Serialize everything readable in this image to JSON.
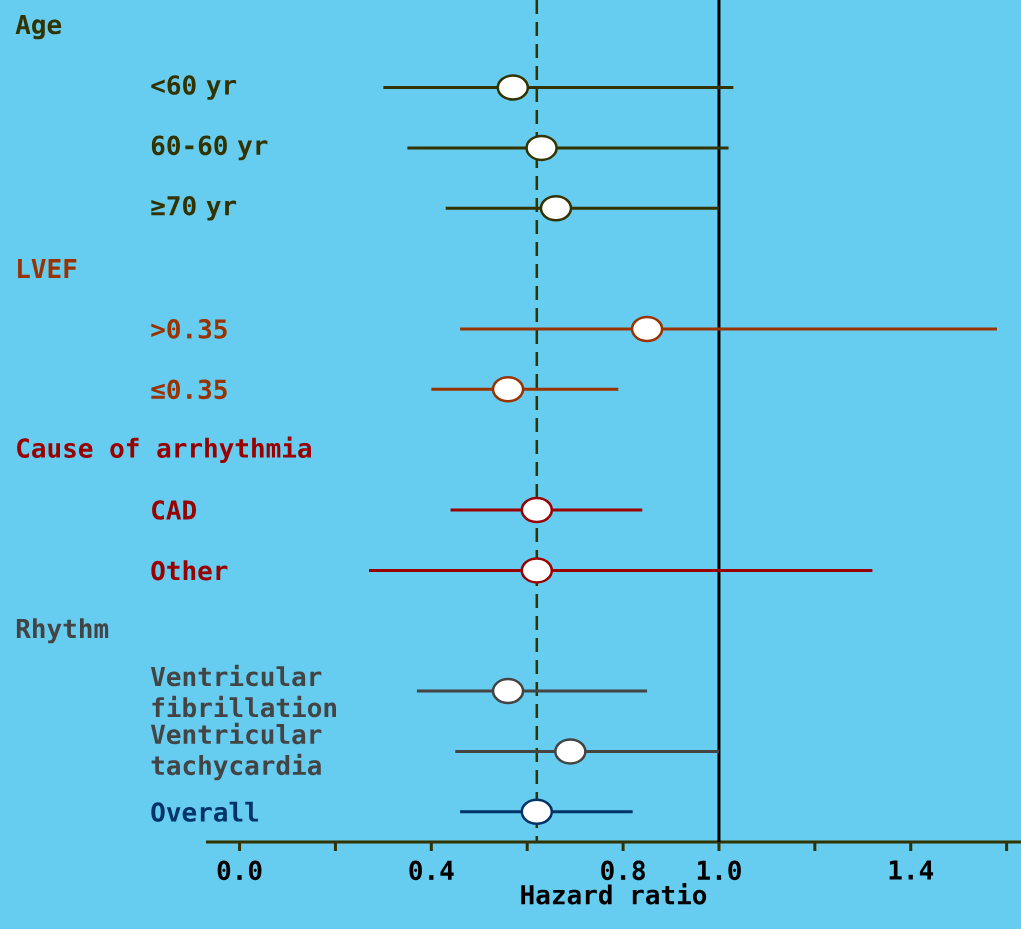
{
  "chart_data": {
    "type": "scatter",
    "orientation": "horizontal",
    "xlabel": "Hazard ratio",
    "categories": [
      null,
      "<60 yr",
      "60-60 yr",
      "≥70 yr",
      null,
      ">0.35",
      "≤0.35",
      null,
      "CAD",
      "Other",
      null,
      "Ventricular fibrillation",
      "Ventricular tachycardia",
      "Overall"
    ],
    "annotations": [
      "Age",
      "LVEF",
      "Cause of arrhythmia",
      "Rhythm"
    ],
    "series": [
      {
        "color": "#333300",
        "values": [
          null,
          0.57,
          0.63,
          0.66,
          null,
          null,
          null,
          null,
          null,
          null,
          null,
          null,
          null,
          null
        ],
        "errors": [
          null,
          [
            0.3,
            1.03
          ],
          [
            0.35,
            1.02
          ],
          [
            0.43,
            1.0
          ],
          null,
          null,
          null,
          null,
          null,
          null,
          null,
          null,
          null,
          null
        ]
      },
      {
        "color": "#993300",
        "values": [
          null,
          null,
          null,
          null,
          null,
          0.85,
          0.56,
          null,
          null,
          null,
          null,
          null,
          null,
          null
        ],
        "errors": [
          null,
          null,
          null,
          null,
          null,
          [
            0.46,
            1.58
          ],
          [
            0.4,
            0.79
          ],
          null,
          null,
          null,
          null,
          null,
          null,
          null
        ]
      },
      {
        "color": "#990000",
        "values": [
          null,
          null,
          null,
          null,
          null,
          null,
          null,
          null,
          0.62,
          0.62,
          null,
          null,
          null,
          null
        ],
        "errors": [
          null,
          null,
          null,
          null,
          null,
          null,
          null,
          null,
          [
            0.44,
            0.84
          ],
          [
            0.27,
            1.32
          ],
          null,
          null,
          null,
          null
        ]
      },
      {
        "color": "#444444",
        "values": [
          null,
          null,
          null,
          null,
          null,
          null,
          null,
          null,
          null,
          null,
          null,
          0.56,
          0.69,
          null
        ],
        "errors": [
          null,
          null,
          null,
          null,
          null,
          null,
          null,
          null,
          null,
          null,
          null,
          [
            0.37,
            0.85
          ],
          [
            0.45,
            1.0
          ],
          null
        ]
      },
      {
        "color": "#003366",
        "values": [
          null,
          null,
          null,
          null,
          null,
          null,
          null,
          null,
          null,
          null,
          null,
          null,
          null,
          0.62
        ],
        "errors": [
          null,
          null,
          null,
          null,
          null,
          null,
          null,
          null,
          null,
          null,
          null,
          null,
          null,
          [
            0.46,
            0.82
          ]
        ]
      }
    ],
    "xlim": [
      -0.07,
      1.63
    ],
    "xticks": [
      {
        "value": 0,
        "label": "0.0"
      },
      {
        "value": 0.2,
        "label": null
      },
      0.4,
      {
        "value": 0.6,
        "label": null
      },
      0.8,
      {
        "value": 1,
        "label": "1.0"
      },
      {
        "value": 1.2,
        "label": null
      },
      1.4,
      {
        "value": 1.6,
        "label": null
      }
    ],
    "ref_lines": [
      {
        "axis": "x",
        "value": 0.62,
        "line_style": "dashed",
        "color": "#333300"
      },
      {
        "axis": "x",
        "value": 1.0,
        "line_style": "solid",
        "color": "#000000"
      }
    ],
    "marker": "circle"
  }
}
